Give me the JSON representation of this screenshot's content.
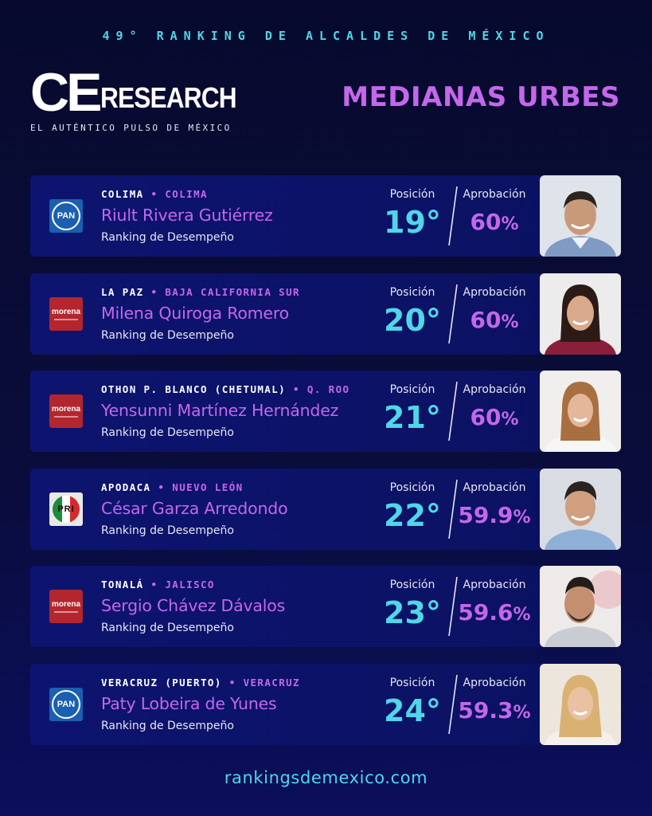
{
  "header": {
    "top_title": "49° RANKING DE ALCALDES DE MÉXICO",
    "logo_ce": "CE",
    "logo_research": "RESEARCH",
    "logo_sub": "EL AUTÉNTICO PULSO DE MÉXICO",
    "category": "MEDIANAS URBES"
  },
  "labels": {
    "position": "Posición",
    "approval": "Aprobación",
    "ranking": "Ranking de Desempeño"
  },
  "mayors": [
    {
      "city": "COLIMA",
      "state": "COLIMA",
      "name": "Riult Rivera Gutiérrez",
      "party": "PAN",
      "position": "19°",
      "approval": "60",
      "pct": "%"
    },
    {
      "city": "LA PAZ",
      "state": "BAJA CALIFORNIA SUR",
      "name": "Milena Quiroga Romero",
      "party": "morena",
      "position": "20°",
      "approval": "60",
      "pct": "%"
    },
    {
      "city": "OTHON P. BLANCO (CHETUMAL)",
      "state": "Q. ROO",
      "name": "Yensunni Martínez Hernández",
      "party": "morena",
      "position": "21°",
      "approval": "60",
      "pct": "%"
    },
    {
      "city": "APODACA",
      "state": "NUEVO LEÓN",
      "name": "César Garza Arredondo",
      "party": "PRI",
      "position": "22°",
      "approval": "59.9",
      "pct": "%"
    },
    {
      "city": "TONALÁ",
      "state": "JALISCO",
      "name": "Sergio Chávez Dávalos",
      "party": "morena",
      "position": "23°",
      "approval": "59.6",
      "pct": "%"
    },
    {
      "city": "VERACRUZ (PUERTO)",
      "state": "VERACRUZ",
      "name": "Paty Lobeira de Yunes",
      "party": "PAN",
      "position": "24°",
      "approval": "59.3",
      "pct": "%"
    }
  ],
  "footer": {
    "url": "rankingsdemexico.com"
  },
  "colors": {
    "accent_cyan": "#4fd6e8",
    "accent_purple": "#c467ea",
    "card_bg": "#0d1470",
    "page_bg": "#070a2e"
  }
}
